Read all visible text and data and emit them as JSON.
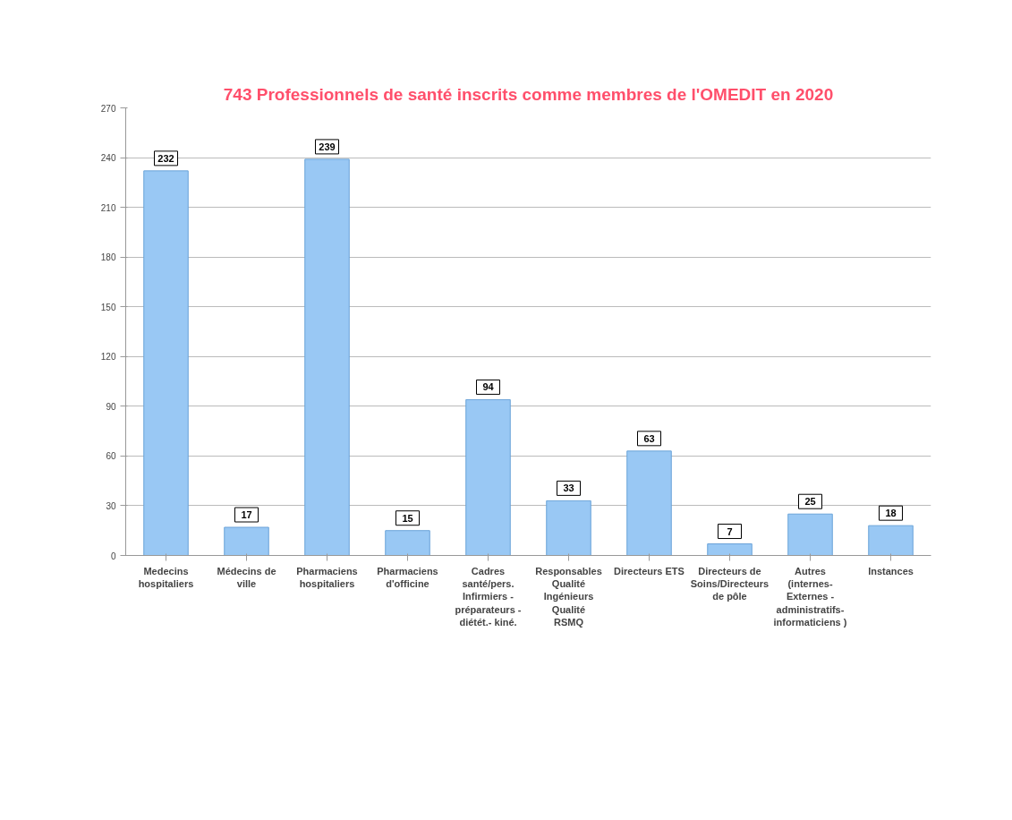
{
  "chart_data": {
    "type": "bar",
    "title": "743 Professionnels de santé inscrits comme membres de l'OMEDIT en 2020",
    "categories": [
      "Medecins\nhospitaliers",
      "Médecins de\nville",
      "Pharmaciens\nhospitaliers",
      "Pharmaciens\nd'officine",
      "Cadres\nsanté/pers.\nInfirmiers -\npréparateurs -\ndiétét.- kiné.",
      "Responsables\nQualité\nIngénieurs\nQualité\nRSMQ",
      "Directeurs ETS",
      "Directeurs de\nSoins/Directeurs\nde pôle",
      "Autres\n(internes-\nExternes -\nadministratifs-\ninformaticiens )",
      "Instances"
    ],
    "values": [
      232,
      17,
      239,
      15,
      94,
      33,
      63,
      7,
      25,
      18
    ],
    "color": "#99c8f4",
    "ylim": [
      0,
      270
    ],
    "yticks": [
      0,
      30,
      60,
      90,
      120,
      150,
      180,
      210,
      240,
      270
    ],
    "grid": "y",
    "data_labels": true
  }
}
